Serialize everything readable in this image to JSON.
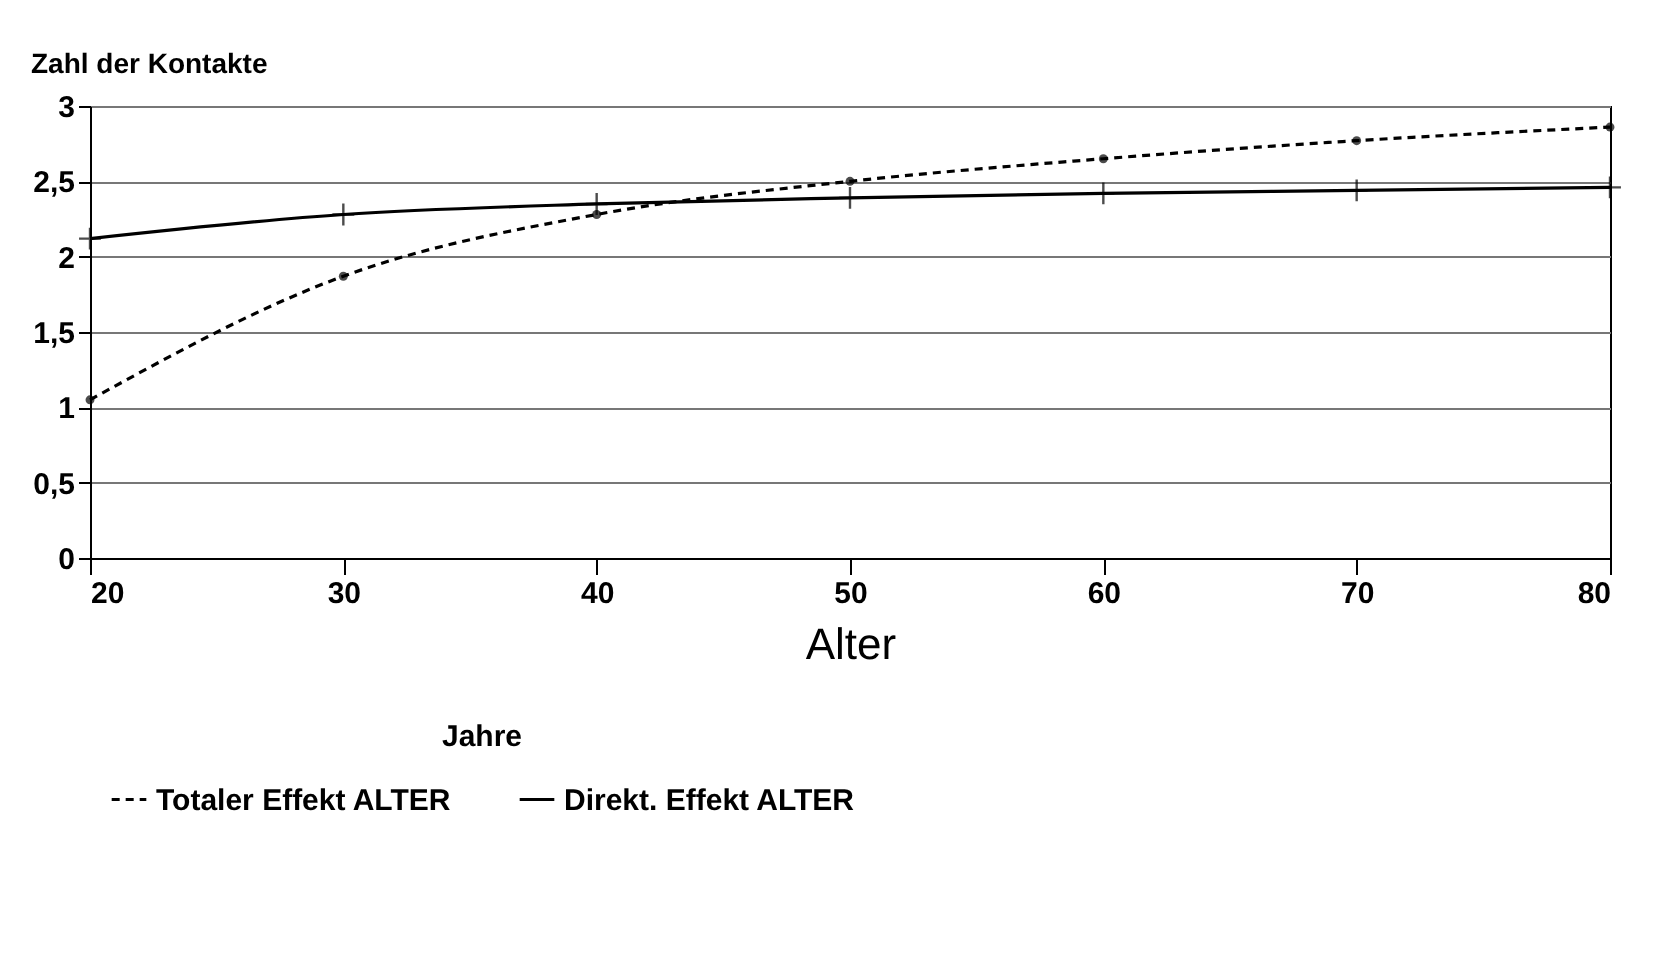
{
  "chart_data": {
    "type": "line",
    "ylabel": "Zahl der Kontakte",
    "xlabel": "Alter",
    "legend_title": "Jahre",
    "x": [
      20,
      30,
      40,
      50,
      60,
      70,
      80
    ],
    "series": [
      {
        "name": "Totaler Effekt ALTER",
        "color": "#000000",
        "line_style": "dashed",
        "marker": "circle",
        "values": [
          1.05,
          1.87,
          2.28,
          2.5,
          2.65,
          2.77,
          2.86
        ]
      },
      {
        "name": "Direkt. Effekt ALTER",
        "color": "#000000",
        "line_style": "solid",
        "marker": "cross",
        "values": [
          2.12,
          2.28,
          2.35,
          2.39,
          2.42,
          2.44,
          2.46
        ]
      }
    ],
    "xlim": [
      20,
      80
    ],
    "xticks": [
      20,
      30,
      40,
      50,
      60,
      70,
      80
    ],
    "ylim": [
      0,
      3
    ],
    "yticks": [
      0,
      {
        "value": 0.5,
        "label": "0,5"
      },
      1,
      {
        "value": 1.5,
        "label": "1,5"
      },
      2,
      {
        "value": 2.5,
        "label": "2,5"
      },
      3
    ],
    "grid": "y",
    "legend": "bottom"
  }
}
